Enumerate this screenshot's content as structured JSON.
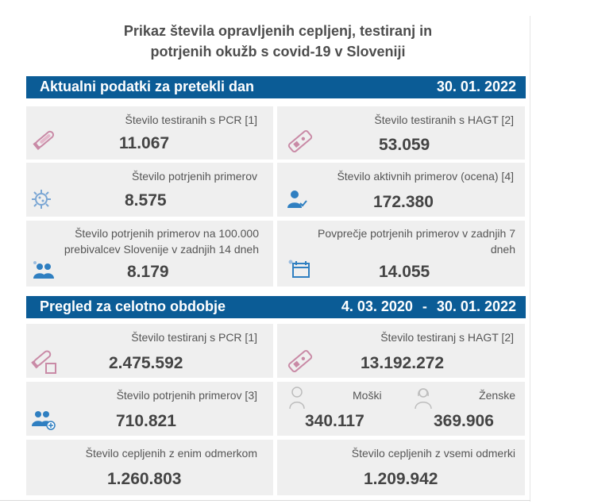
{
  "header": {
    "title_line1": "Prikaz števila opravljenih cepljenj, testiranj in",
    "title_line2": "potrjenih okužb s covid-19 v Sloveniji"
  },
  "daily": {
    "title": "Aktualni podatki za pretekli dan",
    "date": "30. 01. 2022",
    "cards": [
      {
        "label": "Število testiranih s PCR [1]",
        "value": "11.067",
        "icon": "test-tube-icon"
      },
      {
        "label": "Število testiranih s HAGT [2]",
        "value": "53.059",
        "icon": "rapid-test-icon"
      },
      {
        "label": "Število potrjenih primerov",
        "value": "8.575",
        "icon": "virus-icon"
      },
      {
        "label": "Število aktivnih primerov (ocena) [4]",
        "value": "172.380",
        "icon": "person-icon"
      },
      {
        "label_line1": "Število potrjenih primerov na 100.000",
        "label_line2": "prebivalcev Slovenije v zadnjih 14 dneh",
        "value": "8.179",
        "icon": "people-icon"
      },
      {
        "label_line1": "Povprečje potrjenih primerov v zadnjih 7",
        "label_line2": "dneh",
        "value": "14.055",
        "icon": "calendar-icon"
      }
    ]
  },
  "overall": {
    "title": "Pregled za celotno obdobje",
    "date_from": "4. 03. 2020",
    "dash": "-",
    "date_to": "30. 01. 2022",
    "cards": [
      {
        "label": "Število testiranj s PCR [1]",
        "value": "2.475.592",
        "icon": "test-tube-icon"
      },
      {
        "label": "Število testiranj s HAGT [2]",
        "value": "13.192.272",
        "icon": "rapid-test-icon"
      },
      {
        "label": "Število potrjenih primerov [3]",
        "value": "710.821",
        "icon": "people-icon"
      },
      {
        "label_male": "Moški",
        "value_male": "340.117",
        "label_female": "Ženske",
        "value_female": "369.906",
        "icon_male": "man-icon",
        "icon_female": "woman-icon"
      },
      {
        "label": "Število cepljenih z enim odmerkom",
        "value": "1.260.803"
      },
      {
        "label": "Število cepljenih z vsemi odmerki",
        "value": "1.209.942"
      }
    ]
  },
  "colors": {
    "band": "#0b5c96",
    "card": "#efefef",
    "icon_pink": "#c98aa6",
    "icon_blue": "#2f7fc1"
  }
}
